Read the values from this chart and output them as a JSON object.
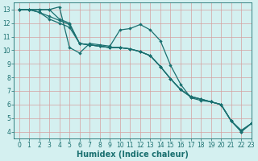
{
  "xlabel": "Humidex (Indice chaleur)",
  "xlim": [
    -0.5,
    23
  ],
  "ylim": [
    3.5,
    13.5
  ],
  "bg_color": "#d4f0f0",
  "grid_color": "#d4a0a0",
  "line_color": "#1a7070",
  "line_width": 0.9,
  "marker": "D",
  "marker_size": 2.2,
  "lines": [
    [
      13.0,
      13.0,
      13.0,
      13.0,
      13.2,
      10.2,
      9.8,
      10.5,
      10.4,
      10.3,
      11.5,
      11.6,
      11.9,
      11.5,
      10.7,
      8.9,
      7.5,
      6.5,
      6.3,
      6.2,
      6.0,
      4.8,
      4.0,
      4.6
    ],
    [
      13.0,
      13.0,
      13.0,
      13.0,
      12.3,
      12.0,
      10.5,
      10.4,
      10.3,
      10.2,
      10.2,
      10.1,
      9.9,
      9.6,
      8.8,
      7.9,
      7.1,
      6.55,
      6.4,
      6.2,
      6.0,
      4.8,
      4.0,
      4.6
    ],
    [
      13.0,
      13.0,
      12.8,
      12.5,
      12.2,
      11.9,
      10.5,
      10.4,
      10.3,
      10.2,
      10.2,
      10.1,
      9.9,
      9.6,
      8.8,
      7.9,
      7.1,
      6.6,
      6.4,
      6.2,
      6.0,
      4.8,
      4.05,
      4.6
    ],
    [
      13.0,
      13.0,
      12.8,
      12.3,
      12.0,
      11.7,
      10.5,
      10.4,
      10.3,
      10.2,
      10.2,
      10.1,
      9.9,
      9.6,
      8.8,
      7.9,
      7.1,
      6.6,
      6.4,
      6.2,
      6.0,
      4.8,
      4.1,
      4.6
    ]
  ],
  "xtick_labels": [
    "0",
    "1",
    "2",
    "3",
    "4",
    "5",
    "6",
    "7",
    "8",
    "9",
    "10",
    "11",
    "12",
    "13",
    "14",
    "15",
    "16",
    "17",
    "18",
    "19",
    "20",
    "21",
    "22",
    "23"
  ],
  "ytick_vals": [
    4,
    5,
    6,
    7,
    8,
    9,
    10,
    11,
    12,
    13
  ],
  "ytick_labels": [
    "4",
    "5",
    "6",
    "7",
    "8",
    "9",
    "10",
    "11",
    "12",
    "13"
  ],
  "label_fontsize": 7,
  "tick_fontsize": 5.5
}
